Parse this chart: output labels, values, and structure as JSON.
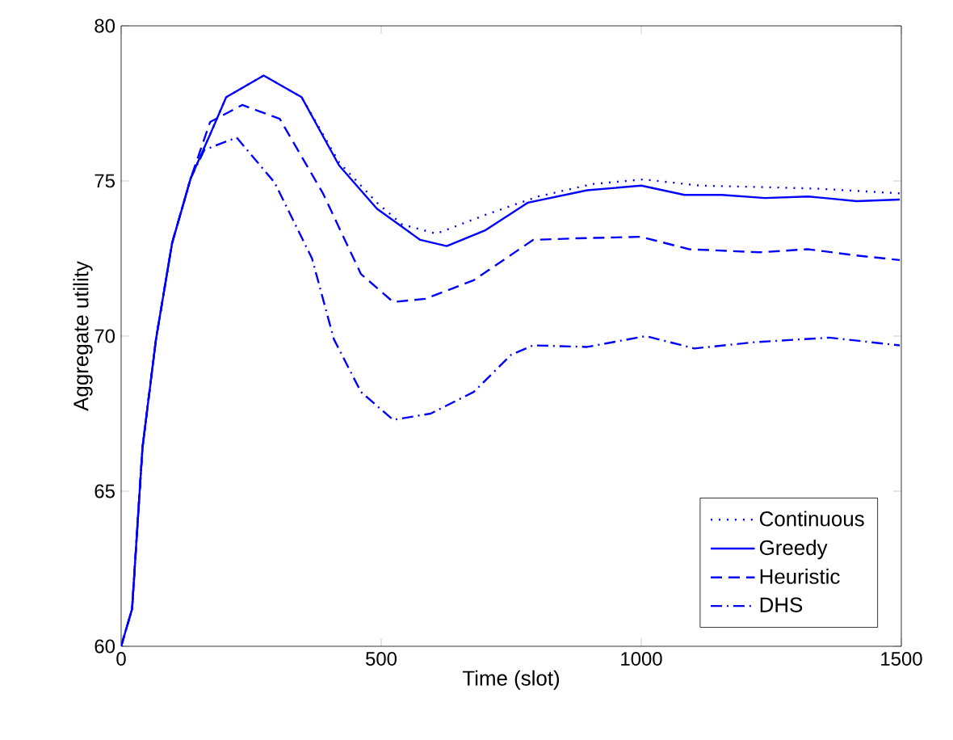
{
  "chart_data": {
    "type": "line",
    "xlabel": "Time (slot)",
    "ylabel": "Aggregate utility",
    "xlim": [
      0,
      1500
    ],
    "ylim": [
      60,
      80
    ],
    "xticks": [
      0,
      500,
      1000,
      1500
    ],
    "yticks": [
      60,
      65,
      70,
      75,
      80
    ],
    "legend": "bottom right",
    "grid": false,
    "marker": "none",
    "series": [
      {
        "name": "Continuous",
        "color": "#0000ff",
        "line_style": "dotted",
        "x": [
          0,
          21,
          41,
          67,
          98,
          134,
          171,
          202,
          274,
          347,
          419,
          492,
          540,
          606,
          699,
          802,
          906,
          1004,
          1113,
          1238,
          1341,
          1497
        ],
        "values": [
          60,
          61.2,
          66.4,
          69.9,
          73,
          75.1,
          76.5,
          77.7,
          78.4,
          77.7,
          75.6,
          74.3,
          73.6,
          73.3,
          73.9,
          74.5,
          74.9,
          75.05,
          74.85,
          74.8,
          74.75,
          74.6
        ]
      },
      {
        "name": "Greedy",
        "color": "#0000ff",
        "line_style": "solid",
        "x": [
          0,
          21,
          41,
          67,
          98,
          134,
          171,
          202,
          274,
          347,
          419,
          492,
          575,
          626,
          699,
          782,
          896,
          1000,
          1083,
          1155,
          1238,
          1321,
          1414,
          1497
        ],
        "values": [
          60,
          61.2,
          66.4,
          69.9,
          73,
          75.1,
          76.5,
          77.7,
          78.4,
          77.7,
          75.5,
          74.1,
          73.1,
          72.9,
          73.4,
          74.3,
          74.7,
          74.85,
          74.55,
          74.55,
          74.45,
          74.5,
          74.35,
          74.4
        ]
      },
      {
        "name": "Heuristic",
        "color": "#0000ff",
        "line_style": "dashed",
        "x": [
          0,
          21,
          41,
          67,
          98,
          134,
          171,
          233,
          305,
          388,
          461,
          523,
          585,
          678,
          792,
          875,
          999,
          1092,
          1227,
          1320,
          1413,
          1497
        ],
        "values": [
          60,
          61.2,
          66.4,
          69.9,
          73,
          75.1,
          76.9,
          77.45,
          77,
          74.6,
          72,
          71.1,
          71.2,
          71.8,
          73.1,
          73.15,
          73.2,
          72.8,
          72.7,
          72.8,
          72.6,
          72.45
        ]
      },
      {
        "name": "DHS",
        "color": "#0000ff",
        "line_style": "dashdot",
        "x": [
          0,
          21,
          41,
          67,
          98,
          134,
          160,
          222,
          295,
          367,
          409,
          461,
          523,
          595,
          678,
          750,
          792,
          896,
          1009,
          1102,
          1216,
          1361,
          1497
        ],
        "values": [
          60,
          61.2,
          66.4,
          69.9,
          73,
          75.1,
          76,
          76.4,
          74.95,
          72.5,
          69.9,
          68.2,
          67.3,
          67.5,
          68.2,
          69.4,
          69.7,
          69.65,
          70,
          69.6,
          69.8,
          69.95,
          69.7
        ]
      }
    ]
  }
}
